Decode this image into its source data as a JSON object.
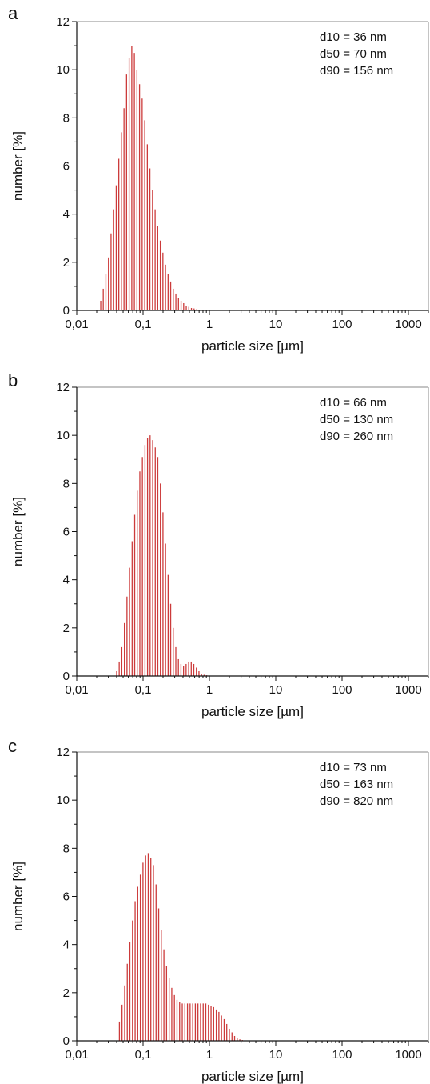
{
  "figure": {
    "colors": {
      "bars": "#cc3a3a",
      "frame": "#8a8a8a",
      "axes": "#111111"
    }
  },
  "chart_data": [
    {
      "type": "bar",
      "panel_label": "a",
      "xlabel": "particle size [µm]",
      "ylabel": "number [%]",
      "x_scale": "log",
      "xlim": [
        0.01,
        2000
      ],
      "ylim": [
        0,
        12
      ],
      "x_tick_labels": [
        "0,01",
        "0,1",
        "1",
        "10",
        "100",
        "1000"
      ],
      "y_tick_labels": [
        "0",
        "2",
        "4",
        "6",
        "8",
        "10",
        "12"
      ],
      "grid": false,
      "stats": [
        "d10 = 36 nm",
        "d50 = 70 nm",
        "d90 = 156 nm"
      ],
      "x": [
        0.023,
        0.0251,
        0.0275,
        0.0301,
        0.0329,
        0.036,
        0.0394,
        0.0431,
        0.0471,
        0.0516,
        0.0564,
        0.0617,
        0.0676,
        0.0739,
        0.0809,
        0.0885,
        0.0969,
        0.106,
        0.116,
        0.1269,
        0.1389,
        0.152,
        0.1663,
        0.182,
        0.1991,
        0.2179,
        0.2384,
        0.2609,
        0.2855,
        0.3124,
        0.3419,
        0.3741,
        0.4093,
        0.4479,
        0.4901,
        0.5363,
        0.5868,
        0.6421,
        0.7026
      ],
      "values": [
        0.4,
        0.9,
        1.5,
        2.2,
        3.2,
        4.2,
        5.2,
        6.3,
        7.4,
        8.4,
        9.8,
        10.5,
        11.0,
        10.7,
        10.0,
        9.4,
        8.8,
        7.9,
        6.9,
        5.9,
        5.0,
        4.2,
        3.5,
        2.9,
        2.4,
        1.9,
        1.5,
        1.2,
        0.9,
        0.7,
        0.5,
        0.4,
        0.3,
        0.2,
        0.15,
        0.1,
        0.08,
        0.05,
        0.03
      ]
    },
    {
      "type": "bar",
      "panel_label": "b",
      "xlabel": "particle size [µm]",
      "ylabel": "number [%]",
      "x_scale": "log",
      "xlim": [
        0.01,
        2000
      ],
      "ylim": [
        0,
        12
      ],
      "x_tick_labels": [
        "0,01",
        "0,1",
        "1",
        "10",
        "100",
        "1000"
      ],
      "y_tick_labels": [
        "0",
        "2",
        "4",
        "6",
        "8",
        "10",
        "12"
      ],
      "grid": false,
      "stats": [
        "d10 = 66 nm",
        "d50 = 130 nm",
        "d90 = 260 nm"
      ],
      "x": [
        0.04,
        0.0437,
        0.0478,
        0.0523,
        0.0572,
        0.0625,
        0.0684,
        0.0748,
        0.0817,
        0.0894,
        0.0977,
        0.1069,
        0.1168,
        0.1277,
        0.1397,
        0.1527,
        0.1669,
        0.1825,
        0.1996,
        0.2182,
        0.2386,
        0.2608,
        0.2852,
        0.3118,
        0.3409,
        0.3727,
        0.4075,
        0.4455,
        0.4871,
        0.5325,
        0.5822,
        0.6366,
        0.696,
        0.7609,
        0.8319,
        0.9096,
        0.9944,
        1.0873,
        1.1887,
        1.2997
      ],
      "values": [
        0.2,
        0.6,
        1.2,
        2.2,
        3.3,
        4.5,
        5.6,
        6.7,
        7.7,
        8.5,
        9.1,
        9.6,
        9.9,
        10.0,
        9.8,
        9.5,
        9.1,
        8.0,
        6.8,
        5.5,
        4.2,
        3.0,
        2.0,
        1.2,
        0.7,
        0.5,
        0.4,
        0.5,
        0.6,
        0.6,
        0.5,
        0.35,
        0.2,
        0.1,
        0.05,
        0.03,
        0.02,
        0.01,
        0.01,
        0.005
      ]
    },
    {
      "type": "bar",
      "panel_label": "c",
      "xlabel": "particle size [µm]",
      "ylabel": "number [%]",
      "x_scale": "log",
      "xlim": [
        0.01,
        2000
      ],
      "ylim": [
        0,
        12
      ],
      "x_tick_labels": [
        "0,01",
        "0,1",
        "1",
        "10",
        "100",
        "1000"
      ],
      "y_tick_labels": [
        "0",
        "2",
        "4",
        "6",
        "8",
        "10",
        "12"
      ],
      "grid": false,
      "stats": [
        "d10 = 73 nm",
        "d50 = 163 nm",
        "d90 = 820 nm"
      ],
      "x": [
        0.044,
        0.0482,
        0.0528,
        0.0578,
        0.0633,
        0.0693,
        0.0759,
        0.0831,
        0.091,
        0.0997,
        0.1092,
        0.1196,
        0.1309,
        0.1434,
        0.157,
        0.172,
        0.1883,
        0.2062,
        0.2259,
        0.2473,
        0.2709,
        0.2966,
        0.3248,
        0.3557,
        0.3896,
        0.4266,
        0.4672,
        0.5116,
        0.5603,
        0.6136,
        0.6719,
        0.7358,
        0.8058,
        0.8825,
        0.9664,
        1.0583,
        1.159,
        1.2692,
        1.3899,
        1.5221,
        1.6669,
        1.8254,
        1.999,
        2.1891,
        2.3973,
        2.6253,
        2.875,
        3.1485
      ],
      "values": [
        0.8,
        1.5,
        2.3,
        3.2,
        4.1,
        5.0,
        5.8,
        6.4,
        6.9,
        7.4,
        7.7,
        7.8,
        7.6,
        7.3,
        6.5,
        5.5,
        4.6,
        3.8,
        3.1,
        2.6,
        2.2,
        1.9,
        1.7,
        1.6,
        1.55,
        1.55,
        1.55,
        1.55,
        1.55,
        1.55,
        1.55,
        1.55,
        1.55,
        1.55,
        1.5,
        1.45,
        1.4,
        1.3,
        1.2,
        1.05,
        0.9,
        0.7,
        0.5,
        0.35,
        0.2,
        0.12,
        0.06,
        0.03
      ]
    }
  ]
}
